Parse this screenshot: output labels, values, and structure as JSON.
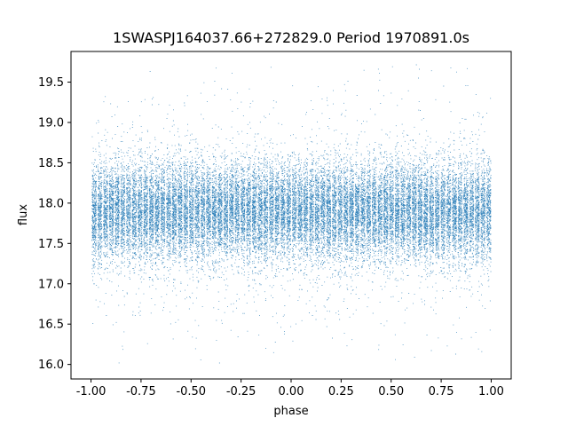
{
  "chart_data": {
    "type": "scatter",
    "title": "1SWASPJ164037.66+272829.0 Period 1970891.0s",
    "xlabel": "phase",
    "ylabel": "flux",
    "xlim": [
      -1.1,
      1.1
    ],
    "ylim": [
      15.82,
      19.88
    ],
    "xticks": [
      "-1.00",
      "-0.75",
      "-0.50",
      "-0.25",
      "0.00",
      "0.25",
      "0.50",
      "0.75",
      "1.00"
    ],
    "xtick_values": [
      -1.0,
      -0.75,
      -0.5,
      -0.25,
      0.0,
      0.25,
      0.5,
      0.75,
      1.0
    ],
    "yticks": [
      "16.0",
      "16.5",
      "17.0",
      "17.5",
      "18.0",
      "18.5",
      "19.0",
      "19.5"
    ],
    "ytick_values": [
      16.0,
      16.5,
      17.0,
      17.5,
      18.0,
      18.5,
      19.0,
      19.5
    ],
    "grid": false,
    "marker_color": "#1f77b4",
    "point_model": {
      "phase_range": [
        -1.0,
        1.0
      ],
      "flux_center": 17.9,
      "flux_core_spread": 0.3,
      "flux_range": [
        16.0,
        19.75
      ],
      "approx_points": 30000
    }
  }
}
